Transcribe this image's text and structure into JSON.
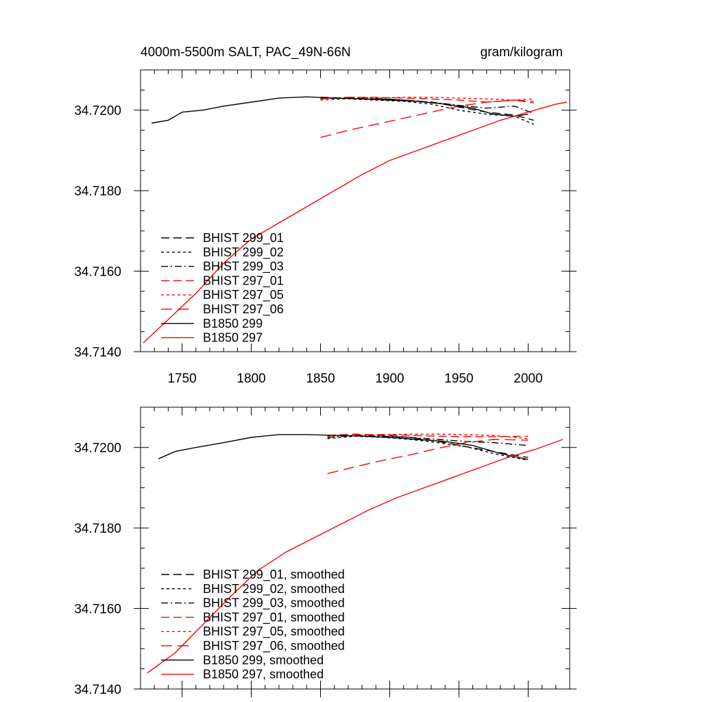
{
  "chart_data": [
    {
      "type": "line",
      "title": "4000m-5500m SALT, PAC_49N-66N",
      "units": "gram/kilogram",
      "xlim": [
        1720,
        2030
      ],
      "ylim": [
        34.714,
        34.721
      ],
      "x_ticks": [
        1750,
        1800,
        1850,
        1900,
        1950,
        2000
      ],
      "y_ticks": [
        "34.7140",
        "34.7160",
        "34.7180",
        "34.7200"
      ],
      "grid": false,
      "legend_position": "bottom-left",
      "series": [
        {
          "name": "BHIST 299_01",
          "color": "#000000",
          "dash": "dash",
          "points": [
            [
              1850,
              34.72032
            ],
            [
              1870,
              34.7203
            ],
            [
              1890,
              34.72028
            ],
            [
              1910,
              34.72025
            ],
            [
              1930,
              34.7202
            ],
            [
              1950,
              34.72008
            ],
            [
              1970,
              34.71995
            ],
            [
              1990,
              34.71988
            ],
            [
              2004,
              34.71975
            ]
          ]
        },
        {
          "name": "BHIST 299_02",
          "color": "#000000",
          "dash": "dot",
          "points": [
            [
              1850,
              34.7203
            ],
            [
              1870,
              34.72028
            ],
            [
              1890,
              34.72025
            ],
            [
              1910,
              34.72022
            ],
            [
              1930,
              34.72015
            ],
            [
              1950,
              34.72
            ],
            [
              1970,
              34.7199
            ],
            [
              1990,
              34.71985
            ],
            [
              2004,
              34.71965
            ]
          ]
        },
        {
          "name": "BHIST 299_03",
          "color": "#000000",
          "dash": "dashdot",
          "points": [
            [
              1850,
              34.72028
            ],
            [
              1870,
              34.72032
            ],
            [
              1890,
              34.7203
            ],
            [
              1910,
              34.72025
            ],
            [
              1930,
              34.7202
            ],
            [
              1950,
              34.72012
            ],
            [
              1970,
              34.72005
            ],
            [
              1990,
              34.7201
            ],
            [
              2004,
              34.71992
            ]
          ]
        },
        {
          "name": "BHIST 297_01",
          "color": "#ff0000",
          "dash": "dash",
          "points": [
            [
              1850,
              34.72028
            ],
            [
              1870,
              34.72032
            ],
            [
              1890,
              34.72032
            ],
            [
              1910,
              34.7203
            ],
            [
              1930,
              34.72028
            ],
            [
              1950,
              34.72025
            ],
            [
              1970,
              34.7202
            ],
            [
              1990,
              34.72025
            ],
            [
              2004,
              34.72018
            ]
          ]
        },
        {
          "name": "BHIST 297_05",
          "color": "#ff0000",
          "dash": "dot",
          "points": [
            [
              1850,
              34.72025
            ],
            [
              1870,
              34.72028
            ],
            [
              1890,
              34.7203
            ],
            [
              1910,
              34.72032
            ],
            [
              1930,
              34.72032
            ],
            [
              1950,
              34.7203
            ],
            [
              1970,
              34.72028
            ],
            [
              1990,
              34.72025
            ],
            [
              2004,
              34.72028
            ]
          ]
        },
        {
          "name": "BHIST 297_06",
          "color": "#ff0000",
          "dash": "longdash",
          "points": [
            [
              1850,
              34.71932
            ],
            [
              1870,
              34.7195
            ],
            [
              1890,
              34.71965
            ],
            [
              1910,
              34.7198
            ],
            [
              1930,
              34.71995
            ],
            [
              1950,
              34.7201
            ],
            [
              1970,
              34.7202
            ],
            [
              1990,
              34.72025
            ],
            [
              2004,
              34.72022
            ]
          ]
        },
        {
          "name": "B1850 299",
          "color": "#000000",
          "dash": "solid",
          "points": [
            [
              1728,
              34.71968
            ],
            [
              1740,
              34.71975
            ],
            [
              1750,
              34.71995
            ],
            [
              1765,
              34.72
            ],
            [
              1780,
              34.7201
            ],
            [
              1800,
              34.7202
            ],
            [
              1820,
              34.7203
            ],
            [
              1840,
              34.72033
            ],
            [
              1860,
              34.7203
            ],
            [
              1880,
              34.72028
            ],
            [
              1900,
              34.72025
            ],
            [
              1920,
              34.72022
            ],
            [
              1940,
              34.72015
            ],
            [
              1960,
              34.72005
            ],
            [
              1975,
              34.7199
            ],
            [
              1990,
              34.71985
            ],
            [
              2000,
              34.7199
            ]
          ]
        },
        {
          "name": "B1850 297",
          "color": "#ff0000",
          "dash": "solid",
          "points": [
            [
              1722,
              34.71422
            ],
            [
              1740,
              34.7148
            ],
            [
              1760,
              34.71545
            ],
            [
              1780,
              34.7162
            ],
            [
              1800,
              34.7168
            ],
            [
              1820,
              34.7172
            ],
            [
              1840,
              34.7176
            ],
            [
              1860,
              34.718
            ],
            [
              1880,
              34.7184
            ],
            [
              1900,
              34.71875
            ],
            [
              1920,
              34.719
            ],
            [
              1940,
              34.71925
            ],
            [
              1960,
              34.7195
            ],
            [
              1980,
              34.71975
            ],
            [
              2000,
              34.71995
            ],
            [
              2020,
              34.72015
            ],
            [
              2028,
              34.7202
            ]
          ]
        }
      ]
    },
    {
      "type": "line",
      "xlim": [
        1720,
        2030
      ],
      "ylim": [
        34.714,
        34.721
      ],
      "x_ticks": [
        1750,
        1800,
        1850,
        1900,
        1950,
        2000
      ],
      "y_ticks": [
        "34.7140",
        "34.7160",
        "34.7180",
        "34.7200"
      ],
      "grid": false,
      "legend_position": "bottom-left",
      "series": [
        {
          "name": "BHIST 299_01, smoothed",
          "color": "#000000",
          "dash": "dash",
          "points": [
            [
              1855,
              34.7203
            ],
            [
              1875,
              34.72033
            ],
            [
              1895,
              34.7203
            ],
            [
              1915,
              34.72025
            ],
            [
              1935,
              34.72015
            ],
            [
              1955,
              34.72002
            ],
            [
              1975,
              34.7199
            ],
            [
              2000,
              34.71975
            ]
          ]
        },
        {
          "name": "BHIST 299_02, smoothed",
          "color": "#000000",
          "dash": "dot",
          "points": [
            [
              1855,
              34.72022
            ],
            [
              1875,
              34.72028
            ],
            [
              1895,
              34.72025
            ],
            [
              1915,
              34.7202
            ],
            [
              1935,
              34.72012
            ],
            [
              1955,
              34.72002
            ],
            [
              1975,
              34.71985
            ],
            [
              2000,
              34.71968
            ]
          ]
        },
        {
          "name": "BHIST 299_03, smoothed",
          "color": "#000000",
          "dash": "dashdot",
          "points": [
            [
              1855,
              34.72025
            ],
            [
              1875,
              34.7203
            ],
            [
              1895,
              34.72028
            ],
            [
              1915,
              34.72025
            ],
            [
              1935,
              34.7202
            ],
            [
              1955,
              34.72015
            ],
            [
              1975,
              34.72012
            ],
            [
              2000,
              34.72005
            ]
          ]
        },
        {
          "name": "BHIST 297_01, smoothed",
          "color": "#ff0000",
          "dash": "dash",
          "points": [
            [
              1855,
              34.7203
            ],
            [
              1875,
              34.72032
            ],
            [
              1895,
              34.72032
            ],
            [
              1915,
              34.7203
            ],
            [
              1935,
              34.72028
            ],
            [
              1955,
              34.72027
            ],
            [
              1975,
              34.72027
            ],
            [
              2000,
              34.72028
            ]
          ]
        },
        {
          "name": "BHIST 297_05, smoothed",
          "color": "#ff0000",
          "dash": "dot",
          "points": [
            [
              1855,
              34.72028
            ],
            [
              1875,
              34.7203
            ],
            [
              1895,
              34.72032
            ],
            [
              1915,
              34.72033
            ],
            [
              1935,
              34.72033
            ],
            [
              1955,
              34.72032
            ],
            [
              1975,
              34.7203
            ],
            [
              2000,
              34.72022
            ]
          ]
        },
        {
          "name": "BHIST 297_06, smoothed",
          "color": "#ff0000",
          "dash": "longdash",
          "points": [
            [
              1855,
              34.71935
            ],
            [
              1875,
              34.71952
            ],
            [
              1895,
              34.71968
            ],
            [
              1915,
              34.71982
            ],
            [
              1935,
              34.71998
            ],
            [
              1955,
              34.72012
            ],
            [
              1975,
              34.7202
            ],
            [
              2000,
              34.72018
            ]
          ]
        },
        {
          "name": "B1850 299, smoothed",
          "color": "#000000",
          "dash": "solid",
          "points": [
            [
              1733,
              34.71972
            ],
            [
              1745,
              34.7199
            ],
            [
              1760,
              34.72
            ],
            [
              1780,
              34.72012
            ],
            [
              1800,
              34.72025
            ],
            [
              1820,
              34.72032
            ],
            [
              1840,
              34.72032
            ],
            [
              1860,
              34.7203
            ],
            [
              1880,
              34.72028
            ],
            [
              1900,
              34.72025
            ],
            [
              1920,
              34.7202
            ],
            [
              1940,
              34.72015
            ],
            [
              1960,
              34.72005
            ],
            [
              1980,
              34.71985
            ],
            [
              2000,
              34.7197
            ]
          ]
        },
        {
          "name": "B1850 297, smoothed",
          "color": "#ff0000",
          "dash": "solid",
          "points": [
            [
              1725,
              34.7144
            ],
            [
              1745,
              34.7149
            ],
            [
              1765,
              34.7156
            ],
            [
              1785,
              34.7163
            ],
            [
              1805,
              34.71695
            ],
            [
              1825,
              34.7174
            ],
            [
              1845,
              34.71775
            ],
            [
              1865,
              34.7181
            ],
            [
              1885,
              34.71845
            ],
            [
              1905,
              34.71875
            ],
            [
              1925,
              34.719
            ],
            [
              1945,
              34.71925
            ],
            [
              1965,
              34.7195
            ],
            [
              1985,
              34.71975
            ],
            [
              2005,
              34.71995
            ],
            [
              2025,
              34.7202
            ]
          ]
        }
      ]
    }
  ]
}
